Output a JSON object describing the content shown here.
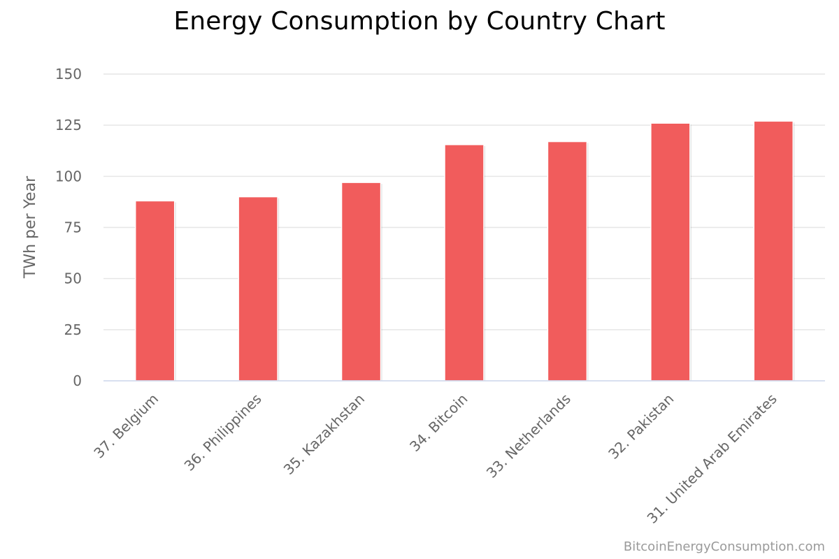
{
  "chart_data": {
    "type": "bar",
    "title": "Energy Consumption by Country Chart",
    "ylabel": "TWh per Year",
    "xlabel": "",
    "categories": [
      "37. Belgium",
      "36. Philippines",
      "35. Kazakhstan",
      "34. Bitcoin",
      "33. Netherlands",
      "32. Pakistan",
      "31. United Arab Emirates"
    ],
    "values": [
      88,
      90,
      97,
      115.5,
      117,
      126,
      127
    ],
    "ylim": [
      0,
      150
    ],
    "yticks": [
      "0",
      "25",
      "50",
      "75",
      "100",
      "125",
      "150"
    ],
    "grid": true,
    "bar_color": "#f15c5c"
  },
  "credit": "BitcoinEnergyConsumption.com"
}
